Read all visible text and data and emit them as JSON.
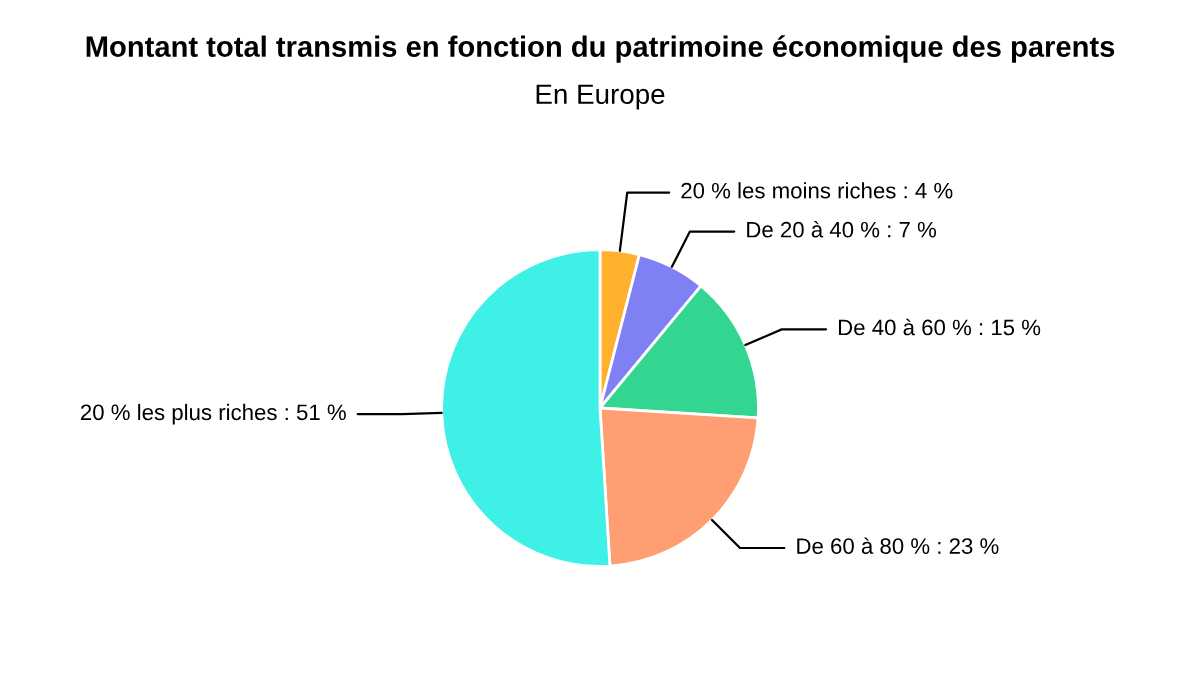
{
  "chart_data": {
    "type": "pie",
    "title": "Montant total transmis en fonction du patrimoine économique des parents",
    "subtitle": "En Europe",
    "categories": [
      "20 % les moins riches : 4 %",
      "De 20 à 40 % : 7 %",
      "De 40 à 60 % : 15 %",
      "De 60 à 80 % : 23 %",
      "20 % les plus riches : 51 %"
    ],
    "values": [
      4,
      7,
      15,
      23,
      51
    ],
    "colors": [
      "#ffb12e",
      "#8080f5",
      "#33d690",
      "#ff9e73",
      "#3ef0e6"
    ],
    "legend": false
  }
}
